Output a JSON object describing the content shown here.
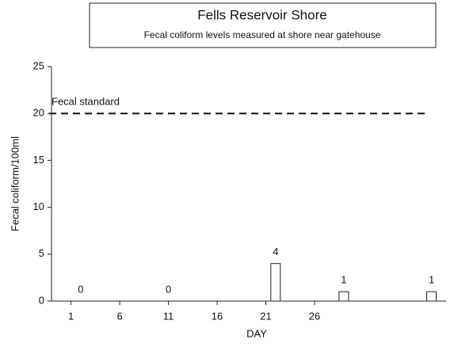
{
  "chart_data": {
    "type": "bar",
    "title": "Fells Reservoir Shore",
    "subtitle": "Fecal coliform levels measured at shore near gatehouse",
    "x_label": "DAY",
    "y_label": "Fecal coliform/100ml",
    "x": [
      2,
      11,
      22,
      29,
      38
    ],
    "values": [
      0,
      0,
      4,
      1,
      1
    ],
    "color": "#ffffff",
    "xlim": [
      -1,
      39.5
    ],
    "xticks": [
      1,
      6,
      11,
      16,
      21,
      26
    ],
    "ylim": [
      0,
      25
    ],
    "yticks": [
      0,
      5,
      10,
      15,
      20,
      25
    ],
    "reference_line": {
      "label": "Fecal standard",
      "value": 20
    }
  }
}
